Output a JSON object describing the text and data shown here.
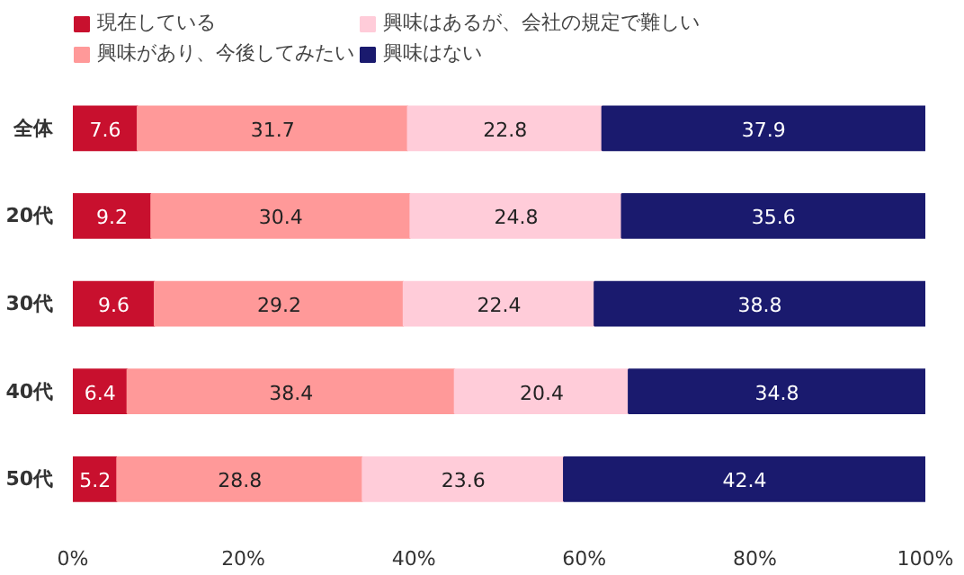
{
  "chart_data": {
    "type": "bar",
    "orientation": "horizontal",
    "stacked": true,
    "categories": [
      "全体",
      "20代",
      "30代",
      "40代",
      "50代"
    ],
    "series": [
      {
        "name": "現在している",
        "color": "#c8102e",
        "values": [
          7.6,
          9.2,
          9.6,
          6.4,
          5.2
        ]
      },
      {
        "name": "興味があり、今後してみたい",
        "color": "#ff9999",
        "values": [
          31.7,
          30.4,
          29.2,
          38.4,
          28.8
        ]
      },
      {
        "name": "興味はあるが、会社の規定で難しい",
        "color": "#ffccd9",
        "values": [
          22.8,
          24.8,
          22.4,
          20.4,
          23.6
        ]
      },
      {
        "name": "興味はない",
        "color": "#1a1a6e",
        "values": [
          37.9,
          35.6,
          38.8,
          34.8,
          42.4
        ]
      }
    ],
    "xlim": [
      0,
      100
    ],
    "xticks": [
      {
        "value": 0,
        "label": "0%"
      },
      {
        "value": 20,
        "label": "20%"
      },
      {
        "value": 40,
        "label": "40%"
      },
      {
        "value": 60,
        "label": "60%"
      },
      {
        "value": 80,
        "label": "80%"
      },
      {
        "value": 100,
        "label": "100%"
      }
    ],
    "data_labels": true,
    "legend": "top",
    "grid": false
  }
}
